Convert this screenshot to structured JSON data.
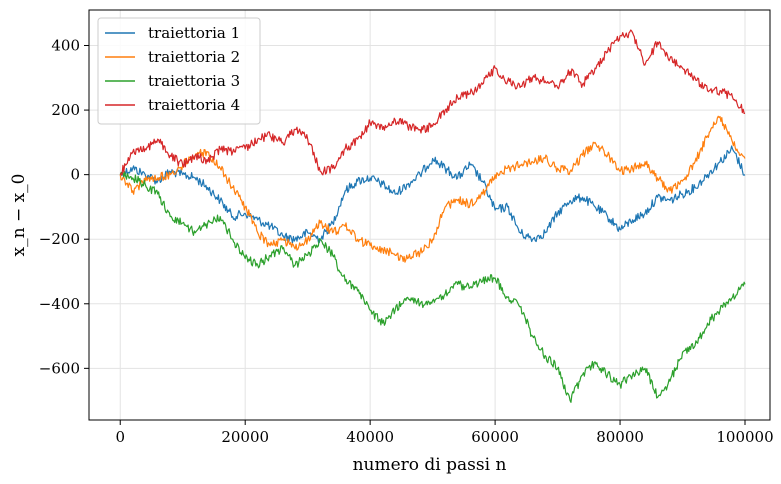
{
  "chart_data": {
    "type": "line",
    "xlabel": "numero di passi n",
    "ylabel": "x_n − x_0",
    "xlim": [
      -5000,
      104000
    ],
    "ylim": [
      -760,
      510
    ],
    "xticks": [
      0,
      20000,
      40000,
      60000,
      80000,
      100000
    ],
    "yticks": [
      -600,
      -400,
      -200,
      0,
      200,
      400
    ],
    "xtick_labels": [
      "0",
      "20000",
      "40000",
      "60000",
      "80000",
      "100000"
    ],
    "ytick_labels": [
      "−600",
      "−400",
      "−200",
      "0",
      "200",
      "400"
    ],
    "grid": true,
    "legend_position": "top-left",
    "series": [
      {
        "name": "traiettoria 1",
        "color": "#1f77b4",
        "x": [
          0,
          2000,
          4000,
          6000,
          8000,
          10000,
          12000,
          14000,
          16000,
          18000,
          20000,
          22000,
          24000,
          26000,
          28000,
          30000,
          32000,
          34000,
          36000,
          38000,
          40000,
          42000,
          44000,
          46000,
          48000,
          50000,
          52000,
          54000,
          56000,
          58000,
          60000,
          62000,
          64000,
          66000,
          68000,
          70000,
          72000,
          74000,
          76000,
          78000,
          80000,
          82000,
          84000,
          86000,
          88000,
          90000,
          92000,
          94000,
          96000,
          98000,
          100000
        ],
        "y": [
          0,
          20,
          0,
          -20,
          10,
          0,
          -10,
          -40,
          -80,
          -130,
          -120,
          -140,
          -160,
          -190,
          -200,
          -180,
          -200,
          -150,
          -50,
          -20,
          -10,
          -30,
          -60,
          -30,
          0,
          50,
          20,
          -10,
          30,
          -20,
          -110,
          -100,
          -180,
          -200,
          -180,
          -120,
          -80,
          -70,
          -100,
          -130,
          -170,
          -140,
          -120,
          -70,
          -80,
          -60,
          -40,
          0,
          40,
          80,
          0
        ]
      },
      {
        "name": "traiettoria 2",
        "color": "#ff7f0e",
        "x": [
          0,
          2000,
          4000,
          6000,
          8000,
          10000,
          12000,
          14000,
          16000,
          18000,
          20000,
          22000,
          24000,
          26000,
          28000,
          30000,
          32000,
          34000,
          36000,
          38000,
          40000,
          42000,
          44000,
          46000,
          48000,
          50000,
          52000,
          54000,
          56000,
          58000,
          60000,
          62000,
          64000,
          66000,
          68000,
          70000,
          72000,
          74000,
          76000,
          78000,
          80000,
          82000,
          84000,
          86000,
          88000,
          90000,
          92000,
          94000,
          96000,
          98000,
          100000
        ],
        "y": [
          0,
          -50,
          -20,
          -10,
          0,
          30,
          60,
          70,
          20,
          -40,
          -100,
          -180,
          -220,
          -200,
          -230,
          -200,
          -150,
          -180,
          -160,
          -200,
          -220,
          -230,
          -250,
          -260,
          -240,
          -200,
          -100,
          -80,
          -90,
          -60,
          0,
          20,
          30,
          40,
          50,
          20,
          10,
          60,
          100,
          60,
          10,
          20,
          40,
          -10,
          -50,
          -20,
          40,
          120,
          180,
          100,
          50
        ]
      },
      {
        "name": "traiettoria 3",
        "color": "#2ca02c",
        "x": [
          0,
          2000,
          4000,
          6000,
          8000,
          10000,
          12000,
          14000,
          16000,
          18000,
          20000,
          22000,
          24000,
          26000,
          28000,
          30000,
          32000,
          34000,
          36000,
          38000,
          40000,
          42000,
          44000,
          46000,
          48000,
          50000,
          52000,
          54000,
          56000,
          58000,
          60000,
          62000,
          64000,
          66000,
          68000,
          70000,
          72000,
          74000,
          76000,
          78000,
          80000,
          82000,
          84000,
          86000,
          88000,
          90000,
          92000,
          94000,
          96000,
          98000,
          100000
        ],
        "y": [
          0,
          -10,
          -30,
          -60,
          -130,
          -150,
          -180,
          -150,
          -130,
          -200,
          -260,
          -280,
          -250,
          -230,
          -280,
          -250,
          -200,
          -250,
          -330,
          -360,
          -420,
          -460,
          -420,
          -380,
          -400,
          -390,
          -370,
          -340,
          -350,
          -330,
          -320,
          -380,
          -410,
          -500,
          -560,
          -600,
          -700,
          -620,
          -580,
          -620,
          -650,
          -620,
          -600,
          -690,
          -640,
          -550,
          -530,
          -460,
          -420,
          -380,
          -340
        ]
      },
      {
        "name": "traiettoria 4",
        "color": "#d62728",
        "x": [
          0,
          2000,
          4000,
          6000,
          8000,
          10000,
          12000,
          14000,
          16000,
          18000,
          20000,
          22000,
          24000,
          26000,
          28000,
          30000,
          32000,
          34000,
          36000,
          38000,
          40000,
          42000,
          44000,
          46000,
          48000,
          50000,
          52000,
          54000,
          56000,
          58000,
          60000,
          62000,
          64000,
          66000,
          68000,
          70000,
          72000,
          74000,
          76000,
          78000,
          80000,
          82000,
          84000,
          86000,
          88000,
          90000,
          92000,
          94000,
          96000,
          98000,
          100000
        ],
        "y": [
          0,
          70,
          80,
          110,
          60,
          30,
          60,
          40,
          80,
          70,
          80,
          110,
          120,
          100,
          140,
          110,
          10,
          20,
          80,
          110,
          160,
          140,
          170,
          150,
          140,
          150,
          200,
          240,
          250,
          280,
          330,
          290,
          270,
          300,
          290,
          270,
          320,
          280,
          330,
          380,
          430,
          440,
          340,
          410,
          360,
          330,
          300,
          260,
          260,
          240,
          190
        ]
      }
    ]
  }
}
